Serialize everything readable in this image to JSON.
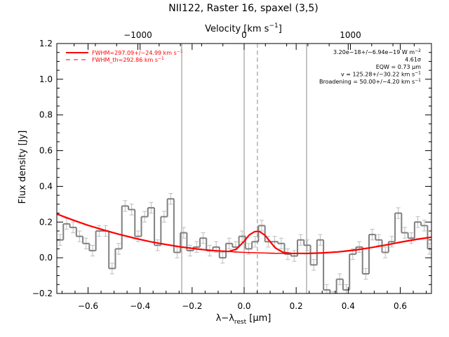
{
  "chart_data": {
    "type": "line",
    "title": "NII122, Raster 16, spaxel (3,5)",
    "xlabel": "λ−λrest [μm]",
    "xlabel_parts": {
      "main": "λ−λ",
      "sub": "rest",
      "unit": " [μm]"
    },
    "ylabel": "Flux density [Jy]",
    "top_axis_label": "Velocity [km s⁻¹]",
    "top_axis_label_parts": {
      "main": "Velocity [km s",
      "sup": "−1",
      "end": "]"
    },
    "xlim": [
      -0.72,
      0.72
    ],
    "ylim": [
      -0.2,
      1.2
    ],
    "xticks": [
      -0.6,
      -0.4,
      -0.2,
      0.0,
      0.2,
      0.4,
      0.6
    ],
    "xtick_labels": [
      "−0.6",
      "−0.4",
      "−0.2",
      "0.0",
      "0.2",
      "0.4",
      "0.6"
    ],
    "yticks": [
      -0.2,
      0.0,
      0.2,
      0.4,
      0.6,
      0.8,
      1.0,
      1.2
    ],
    "ytick_labels": [
      "−0.2",
      "0.0",
      "0.2",
      "0.4",
      "0.6",
      "0.8",
      "1.0",
      "1.2"
    ],
    "top_ticks_velocity": [
      -1000,
      0,
      1000
    ],
    "top_tick_labels": [
      "−1000",
      "0",
      "1000"
    ],
    "top_tick_positions_um": [
      -0.4085,
      0.0,
      0.4085
    ],
    "vertical_lines_um": [
      -0.24,
      0.0,
      0.24
    ],
    "fit_center_um": 0.051,
    "legend": [
      {
        "label": "FWHM=297.09+/−24.99 km s",
        "sup": "−1",
        "style": "solid",
        "color": "#ff0000"
      },
      {
        "label": "FWHM_th=292.86 km s",
        "sup": "−1",
        "style": "dashed",
        "color": "#ff0000"
      }
    ],
    "annotations": [
      {
        "main": "3.20e−18+/−6.94e−19 W m",
        "sup": "−2"
      },
      {
        "main": "4.61σ",
        "sup": ""
      },
      {
        "main": "EQW = 0.73 μm",
        "sup": ""
      },
      {
        "main": "v = 125.28+/−30.22 km s",
        "sup": "−1"
      },
      {
        "main": "Broadening = 50.00+/−4.20 km s",
        "sup": "−1"
      }
    ],
    "series": [
      {
        "name": "spectrum",
        "style": "histogram",
        "color": "#808080",
        "bin_edges": [
          -0.72,
          -0.695,
          -0.67,
          -0.645,
          -0.62,
          -0.595,
          -0.57,
          -0.545,
          -0.52,
          -0.495,
          -0.47,
          -0.445,
          -0.42,
          -0.395,
          -0.37,
          -0.345,
          -0.32,
          -0.295,
          -0.27,
          -0.245,
          -0.22,
          -0.195,
          -0.17,
          -0.145,
          -0.12,
          -0.095,
          -0.07,
          -0.045,
          -0.02,
          0.005,
          0.03,
          0.055,
          0.08,
          0.105,
          0.13,
          0.155,
          0.18,
          0.205,
          0.23,
          0.255,
          0.28,
          0.305,
          0.33,
          0.355,
          0.38,
          0.405,
          0.43,
          0.455,
          0.48,
          0.505,
          0.53,
          0.555,
          0.58,
          0.605,
          0.63,
          0.655,
          0.68,
          0.705,
          0.72
        ],
        "values": [
          0.1,
          0.19,
          0.17,
          0.12,
          0.08,
          0.04,
          0.15,
          0.15,
          -0.06,
          0.05,
          0.29,
          0.27,
          0.12,
          0.23,
          0.28,
          0.07,
          0.23,
          0.33,
          0.03,
          0.14,
          0.04,
          0.06,
          0.11,
          0.04,
          0.06,
          0.0,
          0.08,
          0.06,
          0.12,
          0.05,
          0.09,
          0.18,
          0.09,
          0.09,
          0.08,
          0.02,
          0.01,
          0.1,
          0.07,
          -0.04,
          0.1,
          -0.18,
          -0.22,
          -0.12,
          -0.18,
          0.02,
          0.06,
          -0.09,
          0.13,
          0.1,
          0.03,
          0.09,
          0.25,
          0.14,
          0.11,
          0.2,
          0.18,
          0.05
        ],
        "errors": [
          0.03,
          0.03,
          0.03,
          0.03,
          0.03,
          0.03,
          0.03,
          0.03,
          0.03,
          0.03,
          0.03,
          0.03,
          0.03,
          0.03,
          0.03,
          0.03,
          0.03,
          0.03,
          0.03,
          0.03,
          0.03,
          0.03,
          0.03,
          0.03,
          0.03,
          0.03,
          0.03,
          0.03,
          0.03,
          0.03,
          0.03,
          0.03,
          0.03,
          0.03,
          0.03,
          0.03,
          0.03,
          0.03,
          0.03,
          0.03,
          0.03,
          0.03,
          0.03,
          0.03,
          0.03,
          0.03,
          0.03,
          0.03,
          0.03,
          0.03,
          0.03,
          0.03,
          0.03,
          0.03,
          0.03,
          0.03,
          0.03,
          0.03
        ]
      },
      {
        "name": "continuum + Gaussian fit",
        "style": "line",
        "color": "#ff0000",
        "x": [
          -0.72,
          -0.66,
          -0.6,
          -0.54,
          -0.48,
          -0.42,
          -0.36,
          -0.3,
          -0.24,
          -0.18,
          -0.12,
          -0.06,
          -0.03,
          0.0,
          0.02,
          0.04,
          0.051,
          0.06,
          0.08,
          0.1,
          0.12,
          0.15,
          0.18,
          0.24,
          0.3,
          0.36,
          0.42,
          0.48,
          0.54,
          0.6,
          0.66,
          0.72
        ],
        "y": [
          0.245,
          0.212,
          0.182,
          0.155,
          0.131,
          0.109,
          0.09,
          0.074,
          0.06,
          0.049,
          0.04,
          0.035,
          0.048,
          0.092,
          0.128,
          0.146,
          0.148,
          0.146,
          0.126,
          0.09,
          0.055,
          0.03,
          0.025,
          0.024,
          0.027,
          0.033,
          0.042,
          0.055,
          0.07,
          0.087,
          0.103,
          0.115
        ]
      },
      {
        "name": "continuum",
        "style": "line",
        "color": "#ff0000",
        "x": [
          -0.72,
          -0.6,
          -0.48,
          -0.36,
          -0.24,
          -0.12,
          0.0,
          0.12,
          0.24,
          0.36,
          0.48,
          0.6,
          0.72
        ],
        "y": [
          0.245,
          0.182,
          0.131,
          0.09,
          0.06,
          0.04,
          0.03,
          0.025,
          0.024,
          0.033,
          0.055,
          0.087,
          0.115
        ]
      }
    ],
    "grid": false,
    "legend_position": "top-left"
  }
}
